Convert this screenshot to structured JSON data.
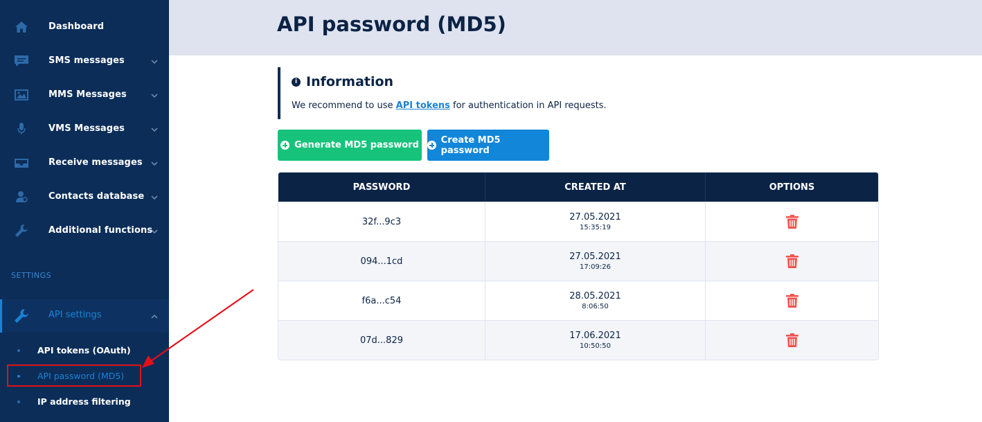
{
  "sidebar": {
    "items": [
      {
        "label": "Dashboard",
        "icon": "home-icon"
      },
      {
        "label": "SMS messages",
        "icon": "chat-icon"
      },
      {
        "label": "MMS Messages",
        "icon": "image-icon"
      },
      {
        "label": "VMS Messages",
        "icon": "microphone-icon"
      },
      {
        "label": "Receive messages",
        "icon": "inbox-icon"
      },
      {
        "label": "Contacts database",
        "icon": "contacts-icon"
      },
      {
        "label": "Additional functions",
        "icon": "wrench-icon"
      }
    ],
    "section_title": "SETTINGS",
    "api_settings": {
      "label": "API settings",
      "icon": "wrench-icon"
    },
    "sub_items": [
      {
        "label": "API tokens (OAuth)"
      },
      {
        "label": "API password (MD5)"
      },
      {
        "label": "IP address filtering"
      }
    ]
  },
  "header": {
    "title": "API password (MD5)"
  },
  "info": {
    "title": "Information",
    "text_before": "We recommend to use",
    "link": "API tokens",
    "text_after": "for authentication in API requests."
  },
  "buttons": {
    "generate": "Generate MD5 password",
    "create": "Create MD5 password"
  },
  "table": {
    "headers": [
      "PASSWORD",
      "CREATED AT",
      "OPTIONS"
    ],
    "rows": [
      {
        "password": "32f...9c3",
        "date": "27.05.2021",
        "time": "15:35:19"
      },
      {
        "password": "094...1cd",
        "date": "27.05.2021",
        "time": "17:09:26"
      },
      {
        "password": "f6a...c54",
        "date": "28.05.2021",
        "time": "8:06:50"
      },
      {
        "password": "07d...829",
        "date": "17.06.2021",
        "time": "10:50:50"
      }
    ]
  },
  "colors": {
    "sidebar_bg": "#0b2d58",
    "accent_blue": "#1a82d6",
    "green": "#17c37b",
    "danger": "#f0544f",
    "highlight": "#e3101a"
  }
}
